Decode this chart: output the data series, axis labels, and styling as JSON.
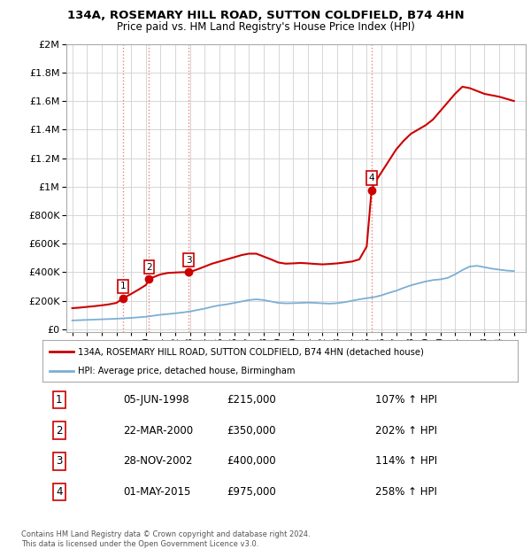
{
  "title1": "134A, ROSEMARY HILL ROAD, SUTTON COLDFIELD, B74 4HN",
  "title2": "Price paid vs. HM Land Registry's House Price Index (HPI)",
  "ytick_values": [
    0,
    200000,
    400000,
    600000,
    800000,
    1000000,
    1200000,
    1400000,
    1600000,
    1800000,
    2000000
  ],
  "ytick_labels": [
    "£0",
    "£200K",
    "£400K",
    "£600K",
    "£800K",
    "£1M",
    "£1.2M",
    "£1.4M",
    "£1.6M",
    "£1.8M",
    "£2M"
  ],
  "xmin": 1994.6,
  "xmax": 2025.8,
  "ymin": -20000,
  "ymax": 2000000,
  "red_line_color": "#cc0000",
  "blue_line_color": "#7bafd4",
  "vline_color": "#f08080",
  "grid_color": "#d0d0d0",
  "transactions": [
    {
      "year": 1998.43,
      "price": 215000,
      "label": "1"
    },
    {
      "year": 2000.22,
      "price": 350000,
      "label": "2"
    },
    {
      "year": 2002.91,
      "price": 400000,
      "label": "3"
    },
    {
      "year": 2015.33,
      "price": 975000,
      "label": "4"
    }
  ],
  "table_rows": [
    {
      "num": "1",
      "date": "05-JUN-1998",
      "price": "£215,000",
      "hpi": "107% ↑ HPI"
    },
    {
      "num": "2",
      "date": "22-MAR-2000",
      "price": "£350,000",
      "hpi": "202% ↑ HPI"
    },
    {
      "num": "3",
      "date": "28-NOV-2002",
      "price": "£400,000",
      "hpi": "114% ↑ HPI"
    },
    {
      "num": "4",
      "date": "01-MAY-2015",
      "price": "£975,000",
      "hpi": "258% ↑ HPI"
    }
  ],
  "legend_red_label": "134A, ROSEMARY HILL ROAD, SUTTON COLDFIELD, B74 4HN (detached house)",
  "legend_blue_label": "HPI: Average price, detached house, Birmingham",
  "footnote": "Contains HM Land Registry data © Crown copyright and database right 2024.\nThis data is licensed under the Open Government Licence v3.0.",
  "hpi_blue_x": [
    1995.0,
    1995.5,
    1996.0,
    1996.5,
    1997.0,
    1997.5,
    1998.0,
    1998.5,
    1999.0,
    1999.5,
    2000.0,
    2000.5,
    2001.0,
    2001.5,
    2002.0,
    2002.5,
    2003.0,
    2003.5,
    2004.0,
    2004.5,
    2005.0,
    2005.5,
    2006.0,
    2006.5,
    2007.0,
    2007.5,
    2008.0,
    2008.5,
    2009.0,
    2009.5,
    2010.0,
    2010.5,
    2011.0,
    2011.5,
    2012.0,
    2012.5,
    2013.0,
    2013.5,
    2014.0,
    2014.5,
    2015.0,
    2015.5,
    2016.0,
    2016.5,
    2017.0,
    2017.5,
    2018.0,
    2018.5,
    2019.0,
    2019.5,
    2020.0,
    2020.5,
    2021.0,
    2021.5,
    2022.0,
    2022.5,
    2023.0,
    2023.5,
    2024.0,
    2024.5,
    2025.0
  ],
  "hpi_blue_y": [
    62000,
    64000,
    66000,
    68000,
    70000,
    72000,
    74000,
    77000,
    80000,
    84000,
    88000,
    95000,
    102000,
    107000,
    112000,
    118000,
    125000,
    135000,
    145000,
    158000,
    168000,
    175000,
    185000,
    195000,
    205000,
    210000,
    205000,
    195000,
    185000,
    182000,
    183000,
    185000,
    187000,
    185000,
    182000,
    180000,
    183000,
    190000,
    200000,
    210000,
    218000,
    225000,
    238000,
    255000,
    270000,
    290000,
    308000,
    322000,
    335000,
    345000,
    350000,
    360000,
    385000,
    415000,
    440000,
    445000,
    435000,
    425000,
    418000,
    412000,
    408000
  ],
  "red_x": [
    1995.0,
    1995.5,
    1996.0,
    1996.5,
    1997.0,
    1997.5,
    1998.0,
    1998.43,
    1998.5,
    1999.0,
    1999.5,
    2000.0,
    2000.22,
    2000.5,
    2001.0,
    2001.5,
    2002.0,
    2002.5,
    2002.91,
    2003.0,
    2003.5,
    2004.0,
    2004.5,
    2005.0,
    2005.5,
    2006.0,
    2006.5,
    2007.0,
    2007.5,
    2008.0,
    2008.5,
    2009.0,
    2009.5,
    2010.0,
    2010.5,
    2011.0,
    2011.5,
    2012.0,
    2012.5,
    2013.0,
    2013.5,
    2014.0,
    2014.5,
    2015.0,
    2015.33,
    2015.5,
    2016.0,
    2016.5,
    2017.0,
    2017.5,
    2018.0,
    2018.5,
    2019.0,
    2019.5,
    2020.0,
    2020.5,
    2021.0,
    2021.5,
    2022.0,
    2022.5,
    2023.0,
    2023.5,
    2024.0,
    2024.5,
    2025.0
  ],
  "red_y": [
    148000,
    152000,
    157000,
    162000,
    168000,
    175000,
    185000,
    215000,
    220000,
    248000,
    278000,
    310000,
    350000,
    365000,
    385000,
    395000,
    398000,
    400000,
    400000,
    402000,
    420000,
    440000,
    460000,
    475000,
    490000,
    505000,
    520000,
    530000,
    530000,
    510000,
    490000,
    468000,
    460000,
    462000,
    465000,
    462000,
    458000,
    455000,
    458000,
    462000,
    468000,
    475000,
    490000,
    580000,
    975000,
    1020000,
    1100000,
    1180000,
    1260000,
    1320000,
    1370000,
    1400000,
    1430000,
    1470000,
    1530000,
    1590000,
    1650000,
    1700000,
    1690000,
    1670000,
    1650000,
    1640000,
    1630000,
    1615000,
    1600000
  ]
}
